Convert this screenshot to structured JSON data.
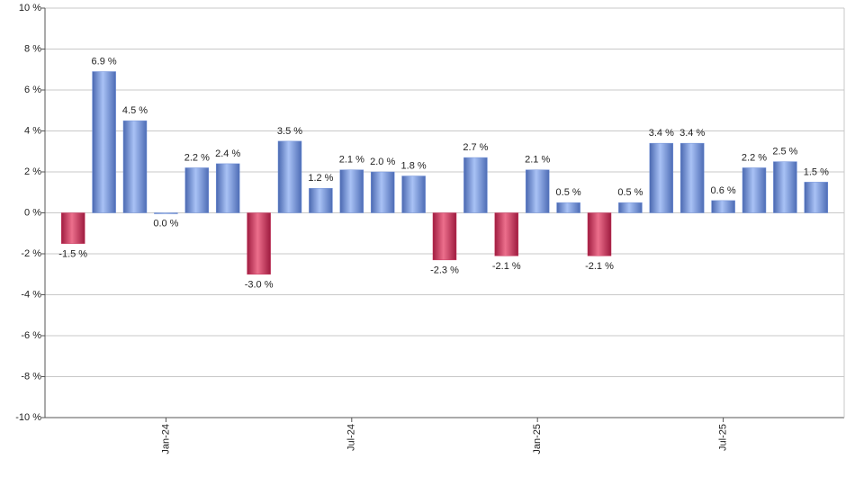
{
  "chart_data": {
    "type": "bar",
    "categories": [
      null,
      null,
      null,
      "Jan-24",
      null,
      null,
      null,
      null,
      null,
      "Jul-24",
      null,
      null,
      null,
      null,
      null,
      "Jan-25",
      null,
      null,
      null,
      null,
      null,
      "Jul-25",
      null,
      null,
      null
    ],
    "values": [
      -1.5,
      6.9,
      4.5,
      0.0,
      2.2,
      2.4,
      -3.0,
      3.5,
      1.2,
      2.1,
      2.0,
      1.8,
      -2.3,
      2.7,
      -2.1,
      2.1,
      0.5,
      -2.1,
      0.5,
      3.4,
      3.4,
      0.6,
      2.2,
      2.5,
      1.5
    ],
    "value_labels": [
      "-1.5 %",
      "6.9 %",
      "4.5 %",
      "0.0 %",
      "2.2 %",
      "2.4 %",
      "-3.0 %",
      "3.5 %",
      "1.2 %",
      "2.1 %",
      "2.0 %",
      "1.8 %",
      "-2.3 %",
      "2.7 %",
      "-2.1 %",
      "2.1 %",
      "0.5 %",
      "-2.1 %",
      "0.5 %",
      "3.4 %",
      "3.4 %",
      "0.6 %",
      "2.2 %",
      "2.5 %",
      "1.5 %"
    ],
    "positive_color": "#7191d9",
    "negative_color": "#c8385e",
    "ylim": [
      -10,
      10
    ],
    "yticks": [
      {
        "value": -10,
        "label": "-10 %"
      },
      {
        "value": -8,
        "label": "-8 %"
      },
      {
        "value": -6,
        "label": "-6 %"
      },
      {
        "value": -4,
        "label": "-4 %"
      },
      {
        "value": -2,
        "label": "-2 %"
      },
      {
        "value": 0,
        "label": "0 %"
      },
      {
        "value": 2,
        "label": "2 %"
      },
      {
        "value": 4,
        "label": "4 %"
      },
      {
        "value": 6,
        "label": "6 %"
      },
      {
        "value": 8,
        "label": "8 %"
      },
      {
        "value": 10,
        "label": "10 %"
      }
    ],
    "grid": true
  }
}
